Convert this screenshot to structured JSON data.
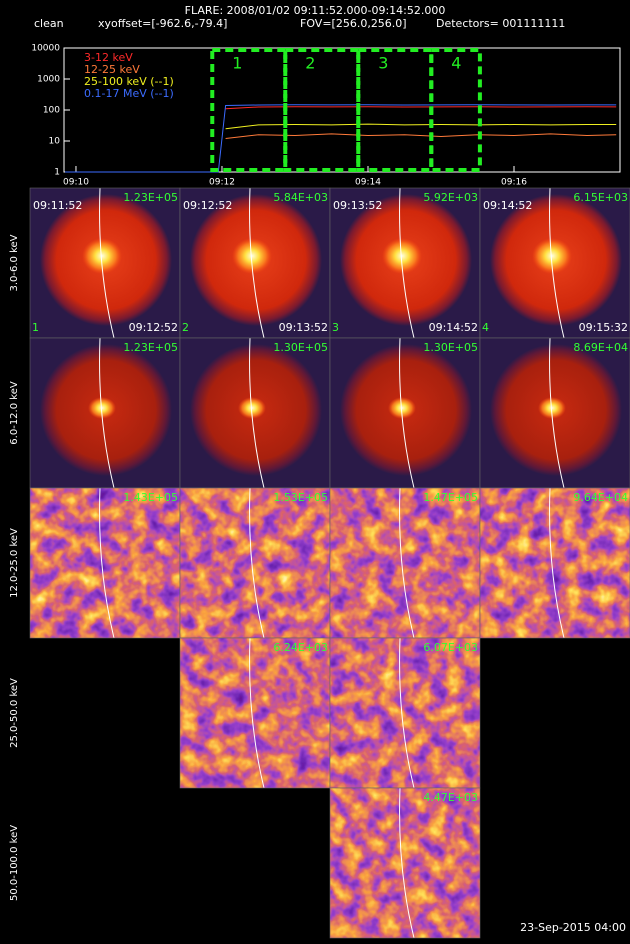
{
  "header": {
    "title": "FLARE: 2008/01/02 09:11:52.000-09:14:52.000",
    "method": "clean",
    "xyoffset": "xyoffset=[-962.6,-79.4]",
    "fov": "FOV=[256.0,256.0]",
    "detectors": "Detectors= 001111111"
  },
  "chart_data": {
    "type": "line",
    "log_y": true,
    "x": [
      9.85,
      11.95,
      12.05,
      12.5,
      13,
      13.5,
      14,
      14.5,
      15,
      15.5,
      16,
      16.5,
      17,
      17.4
    ],
    "series": [
      {
        "name": "3-12 keV",
        "color": "#ff2a2a",
        "values": [
          null,
          null,
          110,
          125,
          128,
          126,
          127,
          125,
          126,
          127,
          125,
          126,
          127,
          126
        ]
      },
      {
        "name": "12-25 keV",
        "color": "#ff7a3a",
        "values": [
          null,
          null,
          12,
          16,
          15,
          17,
          15,
          16,
          14,
          16,
          15,
          17,
          15,
          16
        ]
      },
      {
        "name": "25-100 keV (--1)",
        "color": "#f0f020",
        "values": [
          null,
          null,
          25,
          33,
          34,
          33,
          35,
          33,
          34,
          33,
          34,
          33,
          34,
          34
        ]
      },
      {
        "name": "0.1-17 MeV (--1)",
        "color": "#3c6cff",
        "values": [
          1,
          1,
          140,
          145,
          148,
          146,
          147,
          145,
          146,
          147,
          146,
          145,
          146,
          146
        ]
      }
    ],
    "xlim": [
      9.836,
      17.452
    ],
    "xticks": [
      {
        "value": 10,
        "label": "09:10"
      },
      {
        "value": 12,
        "label": "09:12"
      },
      {
        "value": 14,
        "label": "09:14"
      },
      {
        "value": 16,
        "label": "09:16"
      }
    ],
    "ylim": [
      1,
      10000
    ],
    "yticks": [
      1,
      10,
      100,
      1000,
      10000
    ],
    "intervals": [
      {
        "label": "1",
        "start": 11.867,
        "end": 12.867
      },
      {
        "label": "2",
        "start": 12.867,
        "end": 13.867
      },
      {
        "label": "3",
        "start": 13.867,
        "end": 14.867
      },
      {
        "label": "4",
        "start": 14.867,
        "end": 15.533
      }
    ],
    "interval_color": "#22ee22"
  },
  "panels": {
    "row_labels": [
      "3.0-6.0 keV",
      "6.0-12.0 keV",
      "12.0-25.0 keV",
      "25.0-50.0 keV",
      "50.0-100.0 keV"
    ],
    "rows": [
      [
        {
          "start": "09:11:52",
          "max": "1.23E+05",
          "index": "1",
          "end": "09:12:52"
        },
        {
          "start": "09:12:52",
          "max": "5.84E+03",
          "index": "2",
          "end": "09:13:52"
        },
        {
          "start": "09:13:52",
          "max": "5.92E+03",
          "index": "3",
          "end": "09:14:52"
        },
        {
          "start": "09:14:52",
          "max": "6.15E+03",
          "index": "4",
          "end": "09:15:32"
        }
      ],
      [
        {
          "max": "1.23E+05"
        },
        {
          "max": "1.30E+05"
        },
        {
          "max": "1.30E+05"
        },
        {
          "max": "8.69E+04"
        }
      ],
      [
        {
          "max": "1.43E+05"
        },
        {
          "max": "1.53E+05"
        },
        {
          "max": "1.47E+05"
        },
        {
          "max": "9.64E+04"
        }
      ],
      [
        null,
        {
          "max": "6.24E+03"
        },
        {
          "max": "6.07E+03"
        },
        null
      ],
      [
        null,
        null,
        {
          "max": "4.47E+03"
        },
        null
      ]
    ]
  },
  "footer": "23-Sep-2015 04:00"
}
